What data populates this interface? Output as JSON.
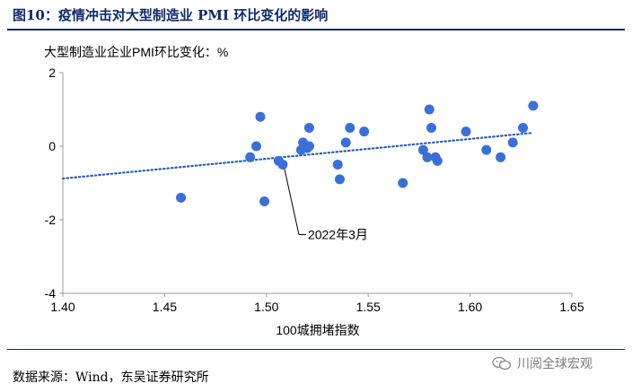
{
  "figure": {
    "title": "图10：疫情冲击对大型制造业 PMI 环比变化的影响",
    "source": "数据来源：Wind，东吴证券研究所",
    "watermark": "川阅全球宏观"
  },
  "chart_data": {
    "type": "scatter",
    "title": "",
    "ylabel": "大型制造业企业PMI环比变化：%",
    "xlabel": "100城拥堵指数",
    "xlim": [
      1.4,
      1.65
    ],
    "ylim": [
      -4,
      2
    ],
    "x_ticks": [
      "1.40",
      "1.45",
      "1.50",
      "1.55",
      "1.60",
      "1.65"
    ],
    "y_ticks": [
      "2",
      "0",
      "-2",
      "-4"
    ],
    "series": [
      {
        "color": "#3b6fd8",
        "points": [
          {
            "x": 1.458,
            "y": -1.4
          },
          {
            "x": 1.492,
            "y": -0.3
          },
          {
            "x": 1.495,
            "y": 0.0
          },
          {
            "x": 1.497,
            "y": 0.8
          },
          {
            "x": 1.499,
            "y": -1.5
          },
          {
            "x": 1.506,
            "y": -0.4
          },
          {
            "x": 1.508,
            "y": -0.5
          },
          {
            "x": 1.517,
            "y": -0.1
          },
          {
            "x": 1.518,
            "y": 0.1
          },
          {
            "x": 1.52,
            "y": -0.05
          },
          {
            "x": 1.521,
            "y": 0.5
          },
          {
            "x": 1.521,
            "y": 0.0
          },
          {
            "x": 1.535,
            "y": -0.5
          },
          {
            "x": 1.536,
            "y": -0.9
          },
          {
            "x": 1.539,
            "y": 0.1
          },
          {
            "x": 1.541,
            "y": 0.5
          },
          {
            "x": 1.548,
            "y": 0.4
          },
          {
            "x": 1.567,
            "y": -1.0
          },
          {
            "x": 1.577,
            "y": -0.1
          },
          {
            "x": 1.579,
            "y": -0.3
          },
          {
            "x": 1.58,
            "y": 1.0
          },
          {
            "x": 1.581,
            "y": 0.5
          },
          {
            "x": 1.583,
            "y": -0.3
          },
          {
            "x": 1.584,
            "y": -0.4
          },
          {
            "x": 1.598,
            "y": 0.4
          },
          {
            "x": 1.608,
            "y": -0.1
          },
          {
            "x": 1.615,
            "y": -0.3
          },
          {
            "x": 1.621,
            "y": 0.1
          },
          {
            "x": 1.626,
            "y": 0.5
          },
          {
            "x": 1.631,
            "y": 1.1
          }
        ]
      }
    ],
    "trendline": {
      "color": "#2a5fb8",
      "style": "dotted",
      "x": [
        1.4,
        1.63
      ],
      "y": [
        -0.88,
        0.36
      ]
    },
    "annotation": {
      "text": "2022年3月",
      "x": 1.508,
      "y": -0.5
    }
  }
}
